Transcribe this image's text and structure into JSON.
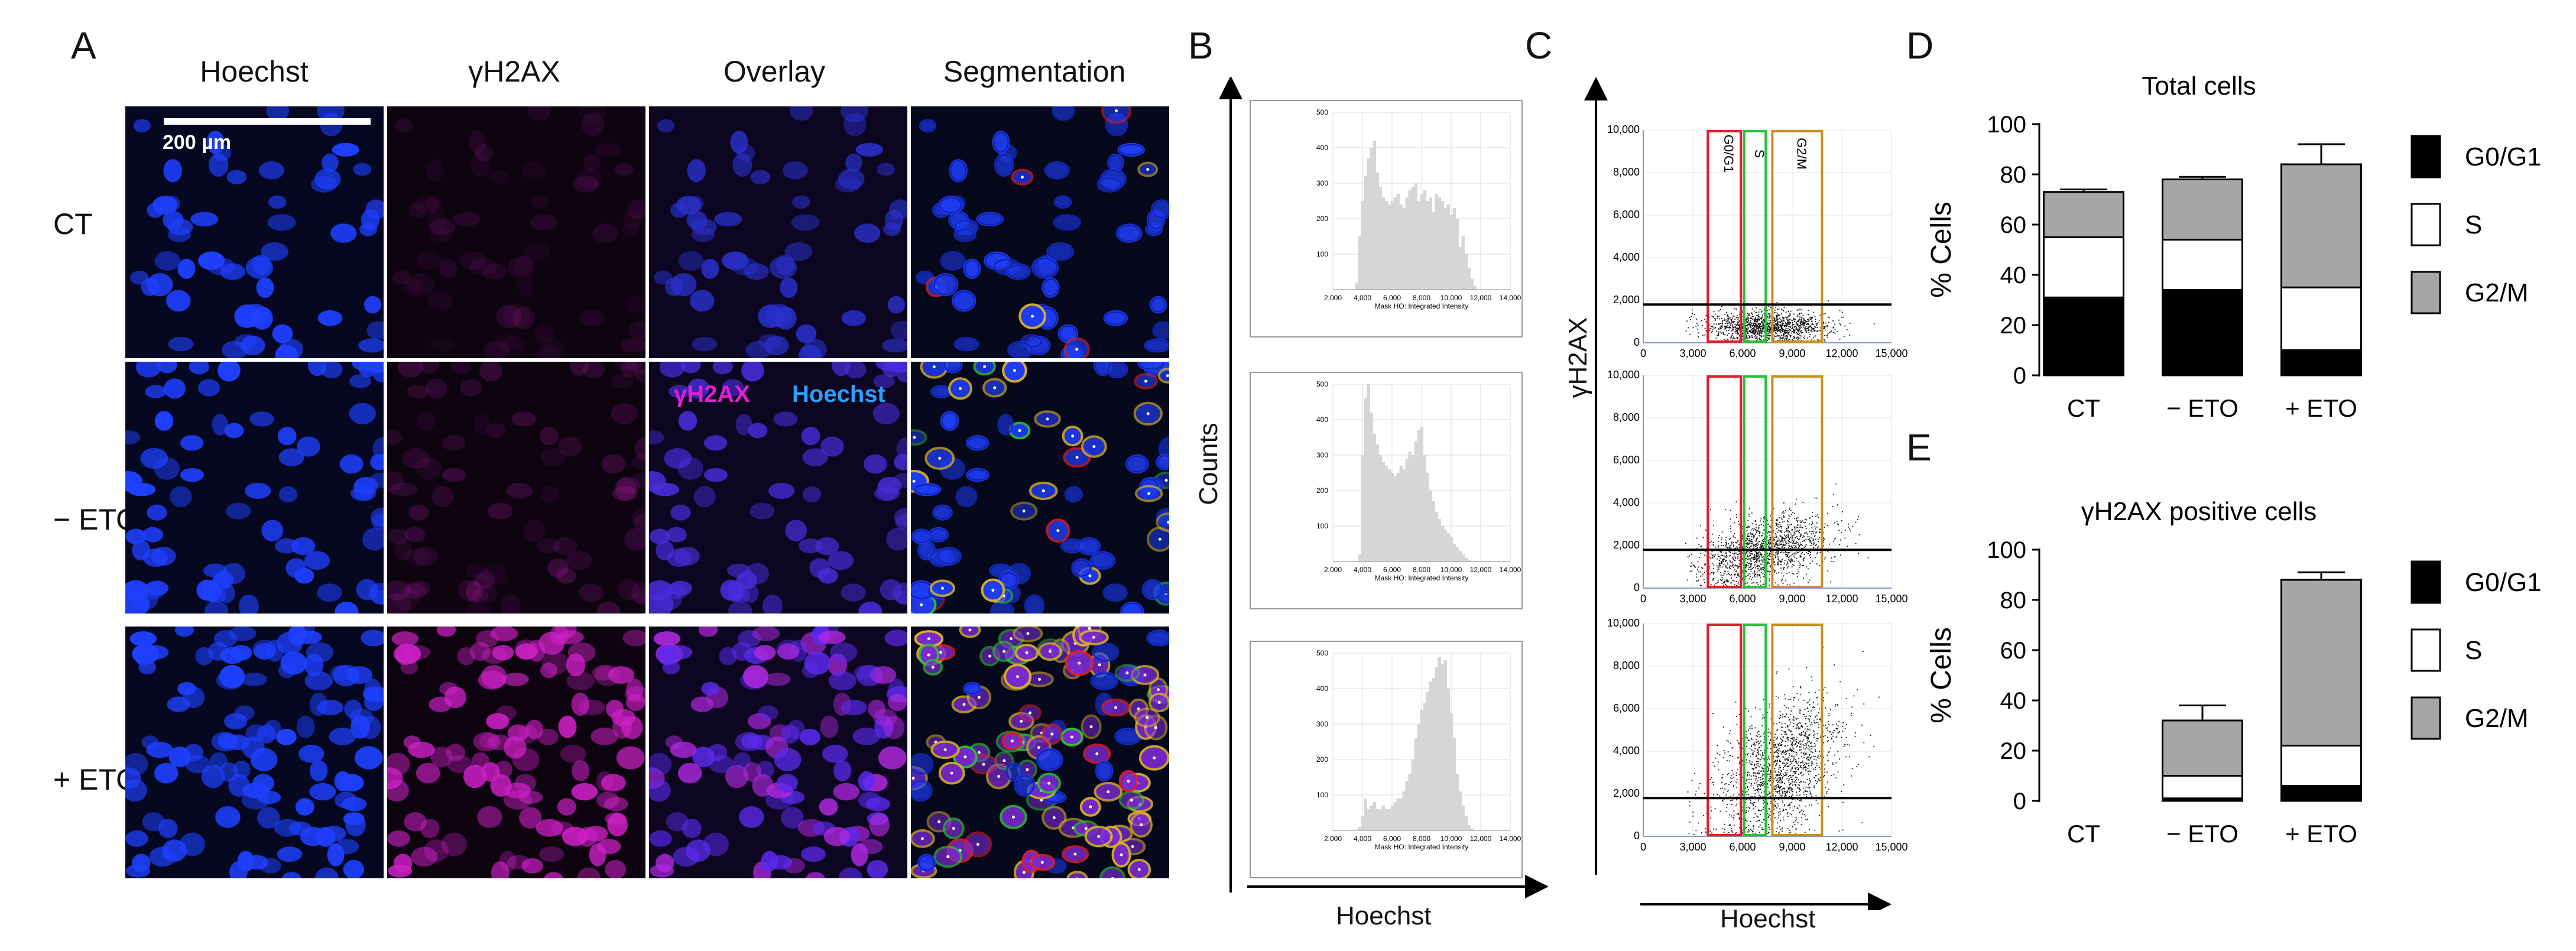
{
  "panels": {
    "A": {
      "letter": "A",
      "columns": [
        "Hoechst",
        "γH2AX",
        "Overlay",
        "Segmentation"
      ],
      "rows": [
        "CT",
        "− ETO",
        "+ ETO"
      ],
      "scalebar_label": "200 µm",
      "overlay_legend": {
        "gh2ax": "γH2AX",
        "hoechst": "Hoechst"
      }
    },
    "B": {
      "letter": "B",
      "ylabel": "Counts",
      "xlabel": "Hoechst",
      "hist_xlabel": "Mask HO: Integrated Intensity"
    },
    "C": {
      "letter": "C",
      "ylabel": "γH2AX",
      "xlabel": "Hoechst",
      "gate_labels": [
        "G0/G1",
        "S",
        "G2/M"
      ]
    },
    "D": {
      "letter": "D"
    },
    "E": {
      "letter": "E"
    }
  },
  "colors": {
    "nucleus_blue": "#1e3fff",
    "magenta": "#e020d0",
    "gate_red": "#e0202a",
    "gate_green": "#2fbf3a",
    "gate_orange": "#c8901e",
    "hist_fill": "#d6d6d6",
    "bar_g1": "#000000",
    "bar_s": "#ffffff",
    "bar_g2m": "#a6a6a6"
  },
  "chart_data": [
    {
      "id": "B-hist",
      "type": "bar",
      "title": "",
      "xlabel": "Mask HO: Integrated Intensity",
      "ylabel": "Counts",
      "x_ticks": [
        "2,000",
        "4,000",
        "6,000",
        "8,000",
        "10,000",
        "12,000",
        "14,000"
      ],
      "y_ticks": [
        "0",
        "100",
        "200",
        "300",
        "400",
        "500"
      ],
      "xlim": [
        2000,
        14000
      ],
      "ylim": [
        0,
        500
      ],
      "series": [
        {
          "name": "CT",
          "x": [
            3600,
            3800,
            4000,
            4200,
            4400,
            4600,
            4800,
            5000,
            5200,
            5400,
            5600,
            5800,
            6000,
            6200,
            6400,
            6600,
            6800,
            7000,
            7200,
            7400,
            7600,
            7800,
            8000,
            8200,
            8400,
            8600,
            8800,
            9000,
            9200,
            9400,
            9600,
            9800,
            10000,
            10200,
            10400,
            10600,
            10800,
            11000,
            11200,
            11400,
            11600
          ],
          "values": [
            20,
            150,
            250,
            320,
            370,
            400,
            420,
            330,
            290,
            260,
            250,
            240,
            250,
            260,
            270,
            240,
            230,
            260,
            280,
            290,
            300,
            250,
            270,
            280,
            250,
            260,
            220,
            270,
            260,
            250,
            230,
            240,
            210,
            230,
            200,
            120,
            150,
            100,
            60,
            30,
            10
          ]
        },
        {
          "name": "− ETO",
          "x": [
            3800,
            4000,
            4200,
            4400,
            4600,
            4800,
            5000,
            5200,
            5400,
            5600,
            5800,
            6000,
            6200,
            6400,
            6600,
            6800,
            7000,
            7200,
            7400,
            7600,
            7800,
            8000,
            8200,
            8400,
            8600,
            8800,
            9000,
            9200,
            9400,
            9600,
            9800,
            10000,
            10200,
            10400,
            10600,
            10800,
            11000,
            11200
          ],
          "values": [
            20,
            300,
            460,
            500,
            420,
            360,
            330,
            300,
            280,
            270,
            260,
            250,
            240,
            250,
            270,
            260,
            290,
            310,
            300,
            340,
            370,
            380,
            300,
            250,
            200,
            170,
            140,
            120,
            100,
            90,
            80,
            70,
            50,
            40,
            30,
            20,
            10,
            5
          ]
        },
        {
          "name": "+ ETO",
          "x": [
            3800,
            4000,
            4200,
            4400,
            4600,
            4800,
            5000,
            5200,
            5400,
            5600,
            5800,
            6000,
            6200,
            6400,
            6600,
            6800,
            7000,
            7200,
            7400,
            7600,
            7800,
            8000,
            8200,
            8400,
            8600,
            8800,
            9000,
            9200,
            9400,
            9600,
            9800,
            10000,
            10200,
            10400,
            10600,
            10800,
            11000,
            11200,
            11400
          ],
          "values": [
            10,
            40,
            90,
            60,
            70,
            80,
            60,
            60,
            70,
            60,
            60,
            70,
            80,
            90,
            90,
            110,
            140,
            160,
            200,
            260,
            300,
            340,
            360,
            390,
            420,
            430,
            460,
            490,
            470,
            480,
            400,
            330,
            260,
            160,
            110,
            70,
            40,
            15,
            5
          ]
        }
      ]
    },
    {
      "id": "C-scatter",
      "type": "scatter",
      "xlabel": "Hoechst",
      "ylabel": "γH2AX",
      "x_ticks": [
        "0",
        "3,000",
        "6,000",
        "9,000",
        "12,000",
        "15,000"
      ],
      "y_ticks": [
        "0",
        "2,000",
        "4,000",
        "6,000",
        "8,000",
        "10,000"
      ],
      "xlim": [
        0,
        15000
      ],
      "ylim": [
        0,
        10000
      ],
      "threshold_y": 1800,
      "gates": [
        {
          "name": "G0/G1",
          "x0": 3900,
          "x1": 5900
        },
        {
          "name": "S",
          "x0": 6100,
          "x1": 7400
        },
        {
          "name": "G2/M",
          "x0": 7800,
          "x1": 10800
        }
      ],
      "clouds": [
        {
          "name": "CT",
          "cx": 7500,
          "cy": 800,
          "sx": 1800,
          "sy": 350,
          "n": 1400,
          "tilt": 0
        },
        {
          "name": "− ETO",
          "cx": 7200,
          "cy": 1800,
          "sx": 2000,
          "sy": 800,
          "n": 1500,
          "tilt": 0.25
        },
        {
          "name": "+ ETO",
          "cx": 8200,
          "cy": 3200,
          "sx": 1900,
          "sy": 1500,
          "n": 1700,
          "tilt": 0.55
        }
      ]
    },
    {
      "id": "D",
      "type": "bar",
      "title": "Total cells",
      "ylabel": "% Cells",
      "categories": [
        "CT",
        "− ETO",
        "+ ETO"
      ],
      "ylim": [
        0,
        100
      ],
      "y_ticks": [
        "0",
        "20",
        "40",
        "60",
        "80",
        "100"
      ],
      "series": [
        {
          "name": "G0/G1",
          "values": [
            31,
            34,
            10
          ],
          "error": [
            0,
            0,
            0
          ]
        },
        {
          "name": "S",
          "values": [
            24,
            20,
            25
          ],
          "error": [
            4,
            0,
            5
          ]
        },
        {
          "name": "G2/M",
          "values": [
            18,
            24,
            49
          ],
          "error": [
            1,
            1,
            8
          ]
        }
      ],
      "legend": [
        "G0/G1",
        "S",
        "G2/M"
      ]
    },
    {
      "id": "E",
      "type": "bar",
      "title": "γH2AX positive cells",
      "ylabel": "% Cells",
      "categories": [
        "CT",
        "− ETO",
        "+ ETO"
      ],
      "ylim": [
        0,
        100
      ],
      "y_ticks": [
        "0",
        "20",
        "40",
        "60",
        "80",
        "100"
      ],
      "series": [
        {
          "name": "G0/G1",
          "values": [
            0,
            1,
            6
          ],
          "error": [
            0,
            1,
            1
          ]
        },
        {
          "name": "S",
          "values": [
            0,
            9,
            16
          ],
          "error": [
            0,
            2,
            4
          ]
        },
        {
          "name": "G2/M",
          "values": [
            0,
            22,
            66
          ],
          "error": [
            0,
            6,
            3
          ]
        }
      ],
      "legend": [
        "G0/G1",
        "S",
        "G2/M"
      ]
    }
  ]
}
